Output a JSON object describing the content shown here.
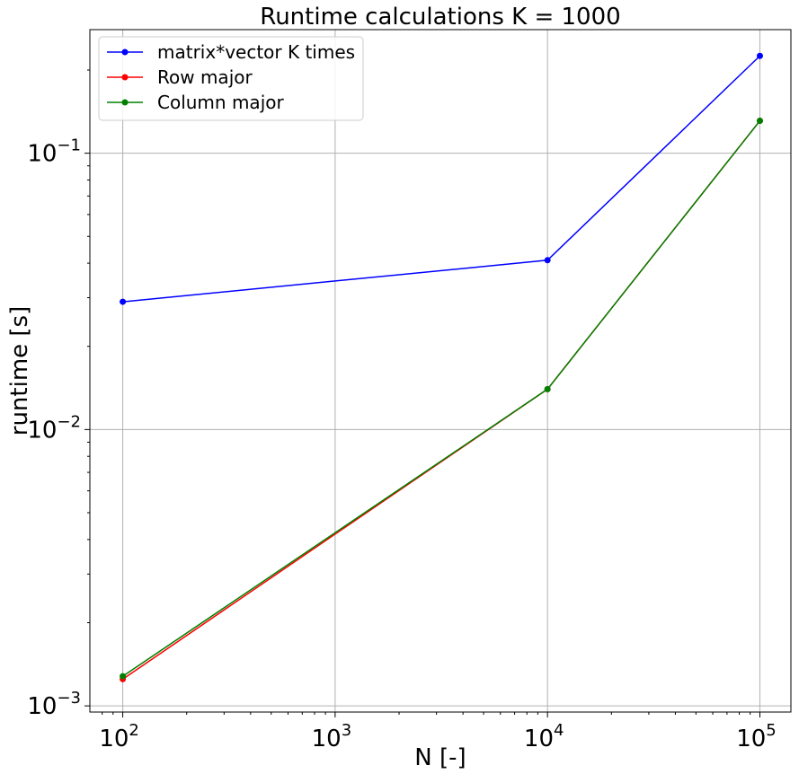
{
  "chart_data": {
    "type": "line",
    "title": "Runtime calculations K = 1000",
    "xlabel": "N [-]",
    "ylabel": "runtime [s]",
    "xscale": "log",
    "yscale": "log",
    "xlim": [
      70,
      140000
    ],
    "ylim": [
      0.00095,
      0.28
    ],
    "grid": true,
    "legend_position": "top-left",
    "x": [
      100,
      10000,
      100000
    ],
    "x_ticks": [
      {
        "value": 100,
        "base": "10",
        "exp": "2"
      },
      {
        "value": 1000,
        "base": "10",
        "exp": "3"
      },
      {
        "value": 10000,
        "base": "10",
        "exp": "4"
      },
      {
        "value": 100000,
        "base": "10",
        "exp": "5"
      }
    ],
    "y_ticks": [
      {
        "value": 0.001,
        "base": "10",
        "exp": "−3"
      },
      {
        "value": 0.01,
        "base": "10",
        "exp": "−2"
      },
      {
        "value": 0.1,
        "base": "10",
        "exp": "−1"
      }
    ],
    "series": [
      {
        "name": "matrix*vector K times",
        "color": "#0000ff",
        "values": [
          0.029,
          0.041,
          0.225
        ]
      },
      {
        "name": "Row major",
        "color": "#ff0000",
        "values": [
          0.00125,
          0.014,
          0.131
        ]
      },
      {
        "name": "Column major",
        "color": "#008000",
        "values": [
          0.00128,
          0.014,
          0.131
        ]
      }
    ]
  }
}
